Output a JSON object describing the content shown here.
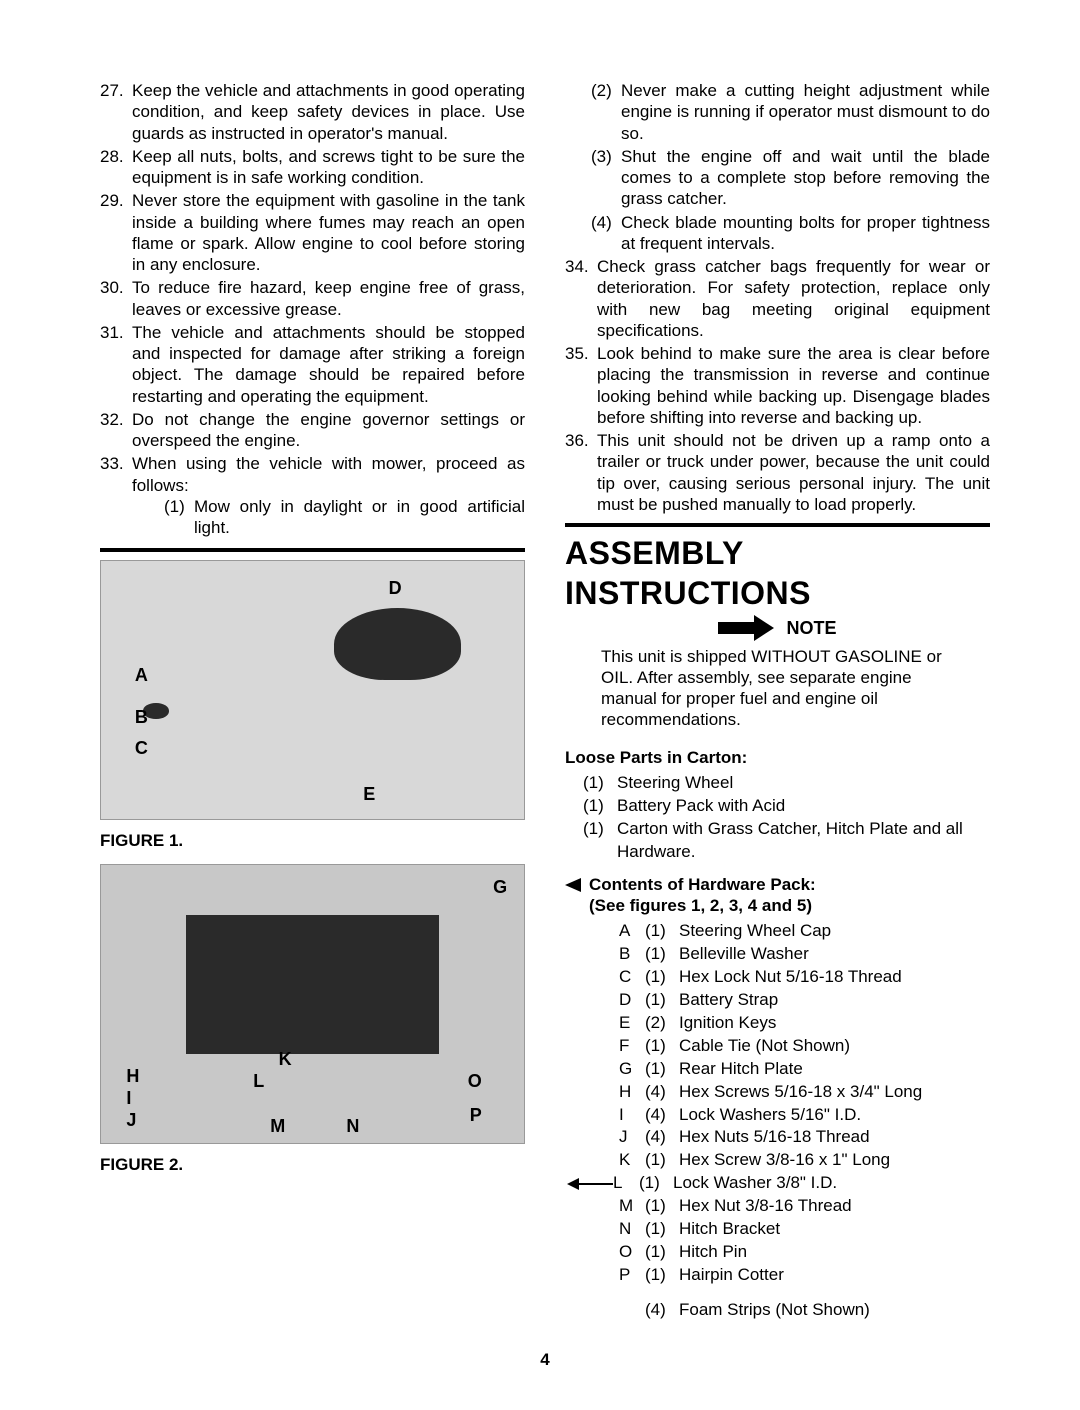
{
  "left_items": [
    {
      "n": "27.",
      "t": "Keep the vehicle and attachments in good operating condition, and keep safety devices in place. Use guards as instructed in operator's manual."
    },
    {
      "n": "28.",
      "t": "Keep all nuts, bolts, and screws tight to be sure the equipment is in safe working condition."
    },
    {
      "n": "29.",
      "t": "Never store the equipment with gasoline in the tank inside a building where fumes may reach an open flame or spark. Allow engine to cool before storing in any enclosure."
    },
    {
      "n": "30.",
      "t": "To reduce fire hazard, keep engine free of grass, leaves or excessive grease."
    },
    {
      "n": "31.",
      "t": "The vehicle and attachments should be stopped and inspected for damage after striking a foreign object. The damage should be repaired before restarting and operating the equipment."
    },
    {
      "n": "32.",
      "t": "Do not change the engine governor settings or overspeed the engine."
    },
    {
      "n": "33.",
      "t": "When using the vehicle with mower, proceed as follows:"
    }
  ],
  "left_sub_33": [
    {
      "n": "(1)",
      "t": "Mow only in daylight or in good artificial light."
    }
  ],
  "right_sub_33": [
    {
      "n": "(2)",
      "t": "Never make a cutting height adjustment while engine is running if operator must dismount to do so."
    },
    {
      "n": "(3)",
      "t": "Shut the engine off and wait until the blade comes to a complete stop before removing the grass catcher."
    },
    {
      "n": "(4)",
      "t": "Check blade mounting bolts for proper tightness at frequent intervals."
    }
  ],
  "right_items": [
    {
      "n": "34.",
      "t": "Check grass catcher bags frequently for wear or deterioration. For safety protection, replace only with new bag meeting original equipment specifications."
    },
    {
      "n": "35.",
      "t": "Look behind to make sure the area is clear before placing the transmission in reverse and continue looking behind while backing up. Disengage blades before shifting into reverse and backing up."
    },
    {
      "n": "36.",
      "t": "This unit should not be driven up a ramp onto a trailer or truck under power, because the unit could tip over, causing serious personal injury. The unit must be pushed manually to load properly."
    }
  ],
  "fig1_caption": "FIGURE 1.",
  "fig2_caption": "FIGURE 2.",
  "fig1_labels": [
    "A",
    "B",
    "C",
    "D",
    "E"
  ],
  "fig2_labels": [
    "G",
    "H",
    "I",
    "J",
    "K",
    "L",
    "M",
    "N",
    "O",
    "P"
  ],
  "assembly_title": "ASSEMBLY INSTRUCTIONS",
  "note_word": "NOTE",
  "note_body": "This unit is shipped WITHOUT GASOLINE or OIL. After assembly, see separate engine manual for proper fuel and engine oil recommendations.",
  "loose_title": "Loose Parts in Carton:",
  "loose_parts": [
    {
      "q": "(1)",
      "d": "Steering Wheel"
    },
    {
      "q": "(1)",
      "d": "Battery Pack with Acid"
    },
    {
      "q": "(1)",
      "d": "Carton with Grass Catcher, Hitch Plate and all Hardware."
    }
  ],
  "hw_title1": "Contents of Hardware Pack:",
  "hw_title2": "(See figures 1, 2, 3, 4 and 5)",
  "hardware": [
    {
      "l": "A",
      "q": "(1)",
      "d": "Steering Wheel Cap"
    },
    {
      "l": "B",
      "q": "(1)",
      "d": "Belleville Washer"
    },
    {
      "l": "C",
      "q": "(1)",
      "d": "Hex Lock Nut 5/16-18 Thread"
    },
    {
      "l": "D",
      "q": "(1)",
      "d": "Battery Strap"
    },
    {
      "l": "E",
      "q": "(2)",
      "d": "Ignition Keys"
    },
    {
      "l": "F",
      "q": "(1)",
      "d": "Cable Tie (Not Shown)"
    },
    {
      "l": "G",
      "q": "(1)",
      "d": "Rear Hitch Plate"
    },
    {
      "l": "H",
      "q": "(4)",
      "d": "Hex Screws 5/16-18 x 3/4\" Long"
    },
    {
      "l": "I",
      "q": "(4)",
      "d": "Lock Washers 5/16\" I.D."
    },
    {
      "l": "J",
      "q": "(4)",
      "d": "Hex Nuts 5/16-18 Thread"
    },
    {
      "l": "K",
      "q": "(1)",
      "d": "Hex Screw 3/8-16 x 1\" Long"
    },
    {
      "l": "L",
      "q": "(1)",
      "d": "Lock Washer 3/8\" I.D."
    },
    {
      "l": "M",
      "q": "(1)",
      "d": "Hex Nut 3/8-16 Thread"
    },
    {
      "l": "N",
      "q": "(1)",
      "d": "Hitch Bracket"
    },
    {
      "l": "O",
      "q": "(1)",
      "d": "Hitch Pin"
    },
    {
      "l": "P",
      "q": "(1)",
      "d": "Hairpin Cotter"
    }
  ],
  "extra_qty": "(4)",
  "extra_desc": "Foam Strips (Not Shown)",
  "page_num": "4"
}
